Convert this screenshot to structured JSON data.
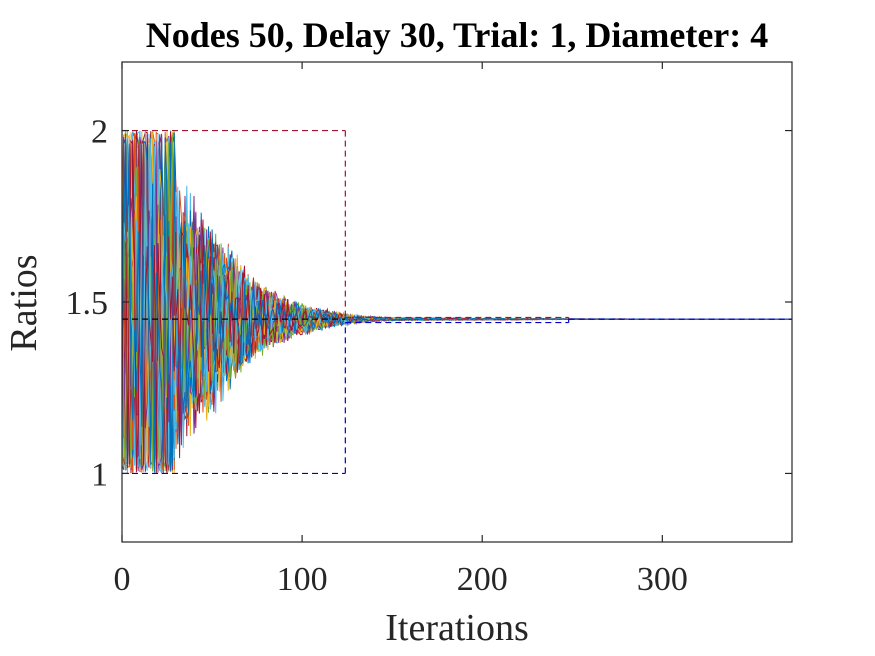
{
  "chart_data": {
    "type": "line",
    "title": "Nodes 50, Delay 30, Trial: 1, Diameter: 4",
    "xlabel": "Iterations",
    "ylabel": "Ratios",
    "xlim": [
      0,
      372
    ],
    "ylim": [
      0.8,
      2.2
    ],
    "xticks": [
      0,
      100,
      200,
      300
    ],
    "yticks": [
      1,
      1.5,
      2
    ],
    "xtick_labels": [
      "0",
      "100",
      "200",
      "300"
    ],
    "ytick_labels": [
      "1",
      "1.5",
      "2"
    ],
    "grid": false,
    "legend": "none",
    "node_count": 50,
    "consensus_value": 1.45,
    "series_colors": [
      "#0072BD",
      "#D95319",
      "#EDB120",
      "#7E2F8E",
      "#77AC30",
      "#4DBEEE",
      "#A2142F"
    ],
    "convergence_envelope": {
      "x": [
        0,
        10,
        20,
        30,
        40,
        50,
        60,
        70,
        80,
        90,
        100,
        110,
        120,
        130,
        140,
        150,
        200,
        250,
        372
      ],
      "half_width": [
        0.5,
        0.5,
        0.5,
        0.45,
        0.38,
        0.3,
        0.22,
        0.15,
        0.1,
        0.07,
        0.05,
        0.035,
        0.022,
        0.013,
        0.008,
        0.005,
        0.003,
        0.001,
        0.0
      ]
    },
    "bounds": [
      {
        "name": "upper",
        "color": "#A2142F",
        "segments": [
          {
            "x0": 0,
            "x1": 124,
            "y": 2.0
          },
          {
            "x0": 124,
            "x1": 248,
            "y": 1.455
          },
          {
            "x0": 248,
            "x1": 372,
            "y": 1.45
          }
        ]
      },
      {
        "name": "lower",
        "color": "#0000CC",
        "segments": [
          {
            "x0": 0,
            "x1": 124,
            "y": 1.0
          },
          {
            "x0": 124,
            "x1": 248,
            "y": 1.44
          },
          {
            "x0": 248,
            "x1": 372,
            "y": 1.45
          }
        ]
      }
    ],
    "reference_line": {
      "y": 1.45,
      "color": "#000000",
      "x0": 0,
      "x1": 124
    }
  }
}
